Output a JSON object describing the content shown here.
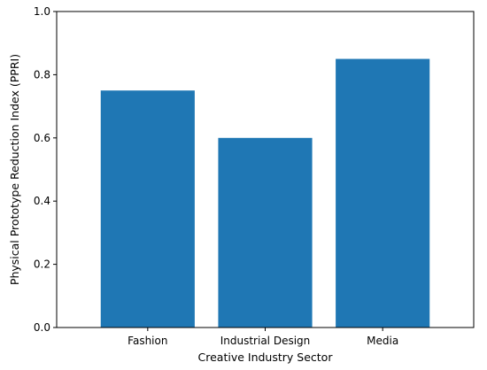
{
  "chart_data": {
    "type": "bar",
    "categories": [
      "Fashion",
      "Industrial Design",
      "Media"
    ],
    "values": [
      0.75,
      0.6,
      0.85
    ],
    "title": "",
    "xlabel": "Creative Industry Sector",
    "ylabel": "Physical Prototype Reduction Index (PPRI)",
    "ylim": [
      0,
      1.0
    ],
    "yticks": [
      "0.0",
      "0.2",
      "0.4",
      "0.6",
      "0.8",
      "1.0"
    ],
    "grid": false,
    "colors": {
      "bar": "#1f77b4",
      "axis": "#000000"
    }
  }
}
